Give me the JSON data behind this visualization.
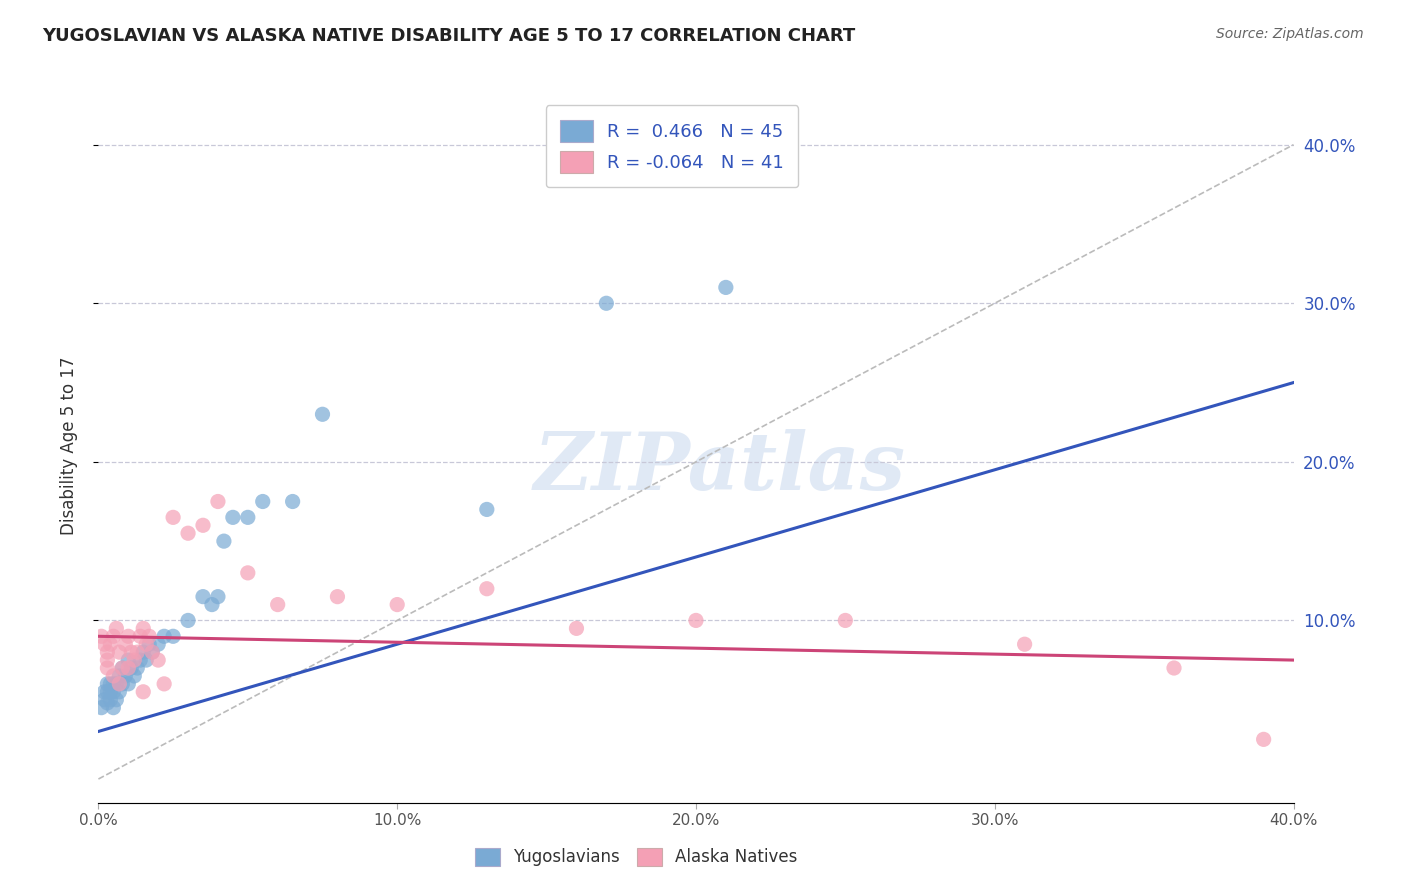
{
  "title": "YUGOSLAVIAN VS ALASKA NATIVE DISABILITY AGE 5 TO 17 CORRELATION CHART",
  "source": "Source: ZipAtlas.com",
  "ylabel": "Disability Age 5 to 17",
  "xlim": [
    0.0,
    0.4
  ],
  "ylim": [
    -0.015,
    0.435
  ],
  "xticks": [
    0.0,
    0.1,
    0.2,
    0.3,
    0.4
  ],
  "yticks": [
    0.1,
    0.2,
    0.3,
    0.4
  ],
  "xtick_labels": [
    "0.0%",
    "10.0%",
    "20.0%",
    "30.0%",
    "40.0%"
  ],
  "right_ytick_labels": [
    "10.0%",
    "20.0%",
    "30.0%",
    "40.0%"
  ],
  "right_ytick_positions": [
    0.1,
    0.2,
    0.3,
    0.4
  ],
  "grid_color": "#c8c8d8",
  "background_color": "#ffffff",
  "watermark_text": "ZIPatlas",
  "legend_r1": "R =  0.466   N = 45",
  "legend_r2": "R = -0.064   N = 41",
  "blue_color": "#7aaad4",
  "pink_color": "#f4a0b5",
  "trend_blue": "#3355bb",
  "trend_pink": "#cc4477",
  "ref_line_color": "#bbbbbb",
  "title_color": "#222222",
  "right_label_color": "#3355bb",
  "yugoslav_x": [
    0.001,
    0.002,
    0.002,
    0.003,
    0.003,
    0.003,
    0.004,
    0.004,
    0.004,
    0.005,
    0.005,
    0.005,
    0.006,
    0.006,
    0.007,
    0.007,
    0.008,
    0.008,
    0.009,
    0.01,
    0.01,
    0.011,
    0.012,
    0.013,
    0.014,
    0.015,
    0.016,
    0.017,
    0.018,
    0.02,
    0.022,
    0.025,
    0.03,
    0.035,
    0.038,
    0.04,
    0.042,
    0.045,
    0.05,
    0.055,
    0.065,
    0.075,
    0.13,
    0.17,
    0.21
  ],
  "yugoslav_y": [
    0.045,
    0.05,
    0.055,
    0.048,
    0.055,
    0.06,
    0.05,
    0.055,
    0.06,
    0.045,
    0.055,
    0.06,
    0.05,
    0.06,
    0.055,
    0.065,
    0.06,
    0.07,
    0.065,
    0.06,
    0.075,
    0.07,
    0.065,
    0.07,
    0.075,
    0.08,
    0.075,
    0.085,
    0.08,
    0.085,
    0.09,
    0.09,
    0.1,
    0.115,
    0.11,
    0.115,
    0.15,
    0.165,
    0.165,
    0.175,
    0.175,
    0.23,
    0.17,
    0.3,
    0.31
  ],
  "alaska_x": [
    0.001,
    0.002,
    0.003,
    0.003,
    0.004,
    0.005,
    0.006,
    0.007,
    0.008,
    0.009,
    0.01,
    0.011,
    0.012,
    0.013,
    0.014,
    0.015,
    0.016,
    0.017,
    0.018,
    0.02,
    0.025,
    0.03,
    0.035,
    0.04,
    0.05,
    0.06,
    0.08,
    0.1,
    0.13,
    0.16,
    0.2,
    0.25,
    0.31,
    0.36,
    0.39,
    0.003,
    0.005,
    0.007,
    0.01,
    0.015,
    0.022
  ],
  "alaska_y": [
    0.09,
    0.085,
    0.08,
    0.075,
    0.085,
    0.09,
    0.095,
    0.08,
    0.07,
    0.085,
    0.09,
    0.08,
    0.075,
    0.08,
    0.09,
    0.095,
    0.085,
    0.09,
    0.08,
    0.075,
    0.165,
    0.155,
    0.16,
    0.175,
    0.13,
    0.11,
    0.115,
    0.11,
    0.12,
    0.095,
    0.1,
    0.1,
    0.085,
    0.07,
    0.025,
    0.07,
    0.065,
    0.06,
    0.07,
    0.055,
    0.06
  ],
  "blue_trend_x": [
    0.0,
    0.4
  ],
  "blue_trend_y": [
    0.03,
    0.25
  ],
  "pink_trend_x": [
    0.0,
    0.4
  ],
  "pink_trend_y": [
    0.09,
    0.075
  ]
}
